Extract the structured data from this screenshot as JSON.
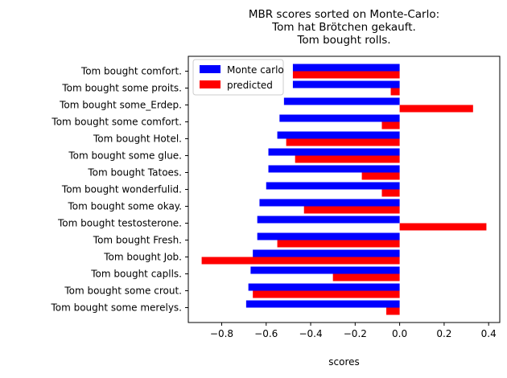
{
  "chart_data": {
    "type": "bar",
    "orientation": "horizontal",
    "title_lines": [
      "MBR scores sorted on Monte-Carlo:",
      "Tom hat Brötchen gekauft.",
      "Tom bought rolls."
    ],
    "xlabel": "scores",
    "ylabel": "",
    "xlim": [
      -0.95,
      0.45
    ],
    "xticks": [
      -0.8,
      -0.6,
      -0.4,
      -0.2,
      0.0,
      0.2,
      0.4
    ],
    "xtick_labels": [
      "−0.8",
      "−0.6",
      "−0.4",
      "−0.2",
      "0.0",
      "0.2",
      "0.4"
    ],
    "grid": false,
    "legend_position": "top-left",
    "categories": [
      "Tom bought comfort.",
      "Tom bought some proits.",
      "Tom bought some_Erdep.",
      "Tom bought some comfort.",
      "Tom bought Hotel.",
      "Tom bought some glue.",
      "Tom bought Tatoes.",
      "Tom bought wonderfulid.",
      "Tom bought some okay.",
      "Tom bought testosterone.",
      "Tom bought Fresh.",
      "Tom bought Job.",
      "Tom bought caplls.",
      "Tom bought some crout.",
      "Tom bought some merelys."
    ],
    "series": [
      {
        "name": "Monte carlo",
        "color": "#0000ff",
        "values": [
          -0.48,
          -0.48,
          -0.52,
          -0.54,
          -0.55,
          -0.59,
          -0.59,
          -0.6,
          -0.63,
          -0.64,
          -0.64,
          -0.66,
          -0.67,
          -0.68,
          -0.69
        ]
      },
      {
        "name": "predicted",
        "color": "#ff0000",
        "values": [
          -0.48,
          -0.04,
          0.33,
          -0.08,
          -0.51,
          -0.47,
          -0.17,
          -0.08,
          -0.43,
          0.39,
          -0.55,
          -0.89,
          -0.3,
          -0.66,
          -0.06
        ]
      }
    ]
  }
}
